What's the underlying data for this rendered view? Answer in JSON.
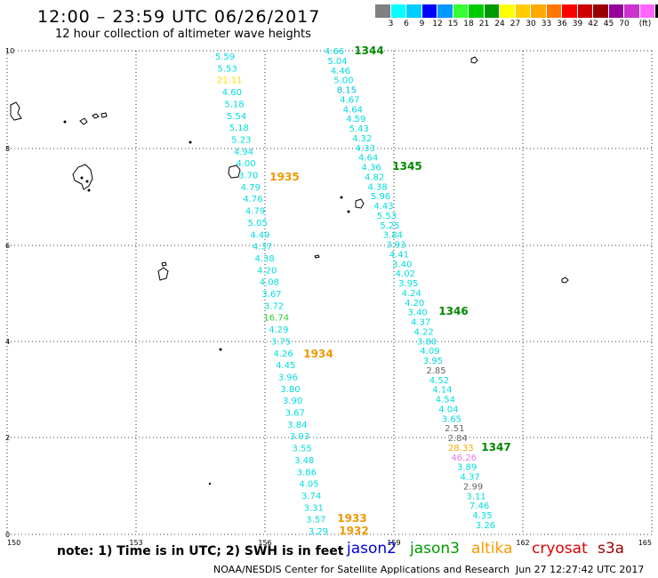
{
  "header": {
    "title": "12:00 – 23:59 UTC 06/26/2017",
    "subtitle": "12 hour collection of altimeter wave heights"
  },
  "legend": {
    "unit": "(ft)",
    "colors": [
      "#808080",
      "#00ffff",
      "#00ccff",
      "#0000ff",
      "#0099ff",
      "#33ff33",
      "#00cc00",
      "#009900",
      "#ffff00",
      "#ffcc00",
      "#ffaa00",
      "#ff7700",
      "#ff0000",
      "#cc0000",
      "#990000",
      "#990099",
      "#cc33cc",
      "#ff66ff",
      "#000000"
    ],
    "labels": [
      "3",
      "6",
      "9",
      "12",
      "15",
      "18",
      "21",
      "24",
      "27",
      "30",
      "33",
      "36",
      "39",
      "42",
      "45",
      "70"
    ]
  },
  "axes": {
    "x_ticks": [
      "150",
      "153",
      "156",
      "159",
      "162",
      "165"
    ],
    "y_ticks": [
      "10",
      "8",
      "6",
      "4",
      "2",
      "0"
    ]
  },
  "passes": [
    {
      "time": "1344",
      "color": "#008800"
    },
    {
      "time": "1345",
      "color": "#008800"
    },
    {
      "time": "1346",
      "color": "#008800"
    },
    {
      "time": "1347",
      "color": "#008800"
    },
    {
      "time": "1935",
      "color": "#ee9900"
    },
    {
      "time": "1934",
      "color": "#ee9900"
    },
    {
      "time": "1933",
      "color": "#ee9900"
    },
    {
      "time": "1932",
      "color": "#ee9900"
    }
  ],
  "track_west": [
    {
      "v": "5.59",
      "c": "#00dddd"
    },
    {
      "v": "5.53",
      "c": "#00dddd"
    },
    {
      "v": "21.11",
      "c": "#ffdd00"
    },
    {
      "v": "4.60",
      "c": "#00dddd"
    },
    {
      "v": "5.18",
      "c": "#00dddd"
    },
    {
      "v": "5.54",
      "c": "#00dddd"
    },
    {
      "v": "5.18",
      "c": "#00dddd"
    },
    {
      "v": "5.23",
      "c": "#00dddd"
    },
    {
      "v": "4.94",
      "c": "#00dddd"
    },
    {
      "v": "4.00",
      "c": "#00dddd"
    },
    {
      "v": "3.70",
      "c": "#00dddd"
    },
    {
      "v": "4.79",
      "c": "#00dddd"
    },
    {
      "v": "4.76",
      "c": "#00dddd"
    },
    {
      "v": "4.79",
      "c": "#00dddd"
    },
    {
      "v": "5.05",
      "c": "#00dddd"
    },
    {
      "v": "4.49",
      "c": "#00dddd"
    },
    {
      "v": "4.37",
      "c": "#00dddd"
    },
    {
      "v": "4.38",
      "c": "#00dddd"
    },
    {
      "v": "4.20",
      "c": "#00dddd"
    },
    {
      "v": "4.08",
      "c": "#00dddd"
    },
    {
      "v": "3.67",
      "c": "#00dddd"
    },
    {
      "v": "3.72",
      "c": "#00dddd"
    },
    {
      "v": "16.74",
      "c": "#33cc33"
    },
    {
      "v": "4.29",
      "c": "#00dddd"
    },
    {
      "v": "3.75",
      "c": "#00dddd"
    },
    {
      "v": "4.26",
      "c": "#00dddd"
    },
    {
      "v": "4.45",
      "c": "#00dddd"
    },
    {
      "v": "3.96",
      "c": "#00dddd"
    },
    {
      "v": "3.80",
      "c": "#00dddd"
    },
    {
      "v": "3.90",
      "c": "#00dddd"
    },
    {
      "v": "3.67",
      "c": "#00dddd"
    },
    {
      "v": "3.84",
      "c": "#00dddd"
    },
    {
      "v": "3.93",
      "c": "#00dddd"
    },
    {
      "v": "3.55",
      "c": "#00dddd"
    },
    {
      "v": "3.48",
      "c": "#00dddd"
    },
    {
      "v": "3.86",
      "c": "#00dddd"
    },
    {
      "v": "4.05",
      "c": "#00dddd"
    },
    {
      "v": "3.74",
      "c": "#00dddd"
    },
    {
      "v": "3.31",
      "c": "#00dddd"
    },
    {
      "v": "3.57",
      "c": "#00dddd"
    },
    {
      "v": "3.29",
      "c": "#00dddd"
    }
  ],
  "track_east": [
    {
      "v": "4.66",
      "c": "#00dddd"
    },
    {
      "v": "5.04",
      "c": "#00dddd"
    },
    {
      "v": "4.46",
      "c": "#00dddd"
    },
    {
      "v": "5.00",
      "c": "#00dddd"
    },
    {
      "v": "8.15",
      "c": "#00bbdd"
    },
    {
      "v": "4.67",
      "c": "#00dddd"
    },
    {
      "v": "4.64",
      "c": "#00dddd"
    },
    {
      "v": "4.59",
      "c": "#00dddd"
    },
    {
      "v": "5.43",
      "c": "#00dddd"
    },
    {
      "v": "4.32",
      "c": "#00dddd"
    },
    {
      "v": "4.33",
      "c": "#00dddd"
    },
    {
      "v": "4.64",
      "c": "#00dddd"
    },
    {
      "v": "4.36",
      "c": "#00dddd"
    },
    {
      "v": "4.82",
      "c": "#00dddd"
    },
    {
      "v": "4.38",
      "c": "#00dddd"
    },
    {
      "v": "5.96",
      "c": "#00dddd"
    },
    {
      "v": "4.43",
      "c": "#00dddd"
    },
    {
      "v": "5.53",
      "c": "#00dddd"
    },
    {
      "v": "5.25",
      "c": "#00dddd"
    },
    {
      "v": "3.84",
      "c": "#00dddd"
    },
    {
      "v": "3.93",
      "c": "#00dddd"
    },
    {
      "v": "4.41",
      "c": "#00dddd"
    },
    {
      "v": "3.40",
      "c": "#00dddd"
    },
    {
      "v": "4.02",
      "c": "#00dddd"
    },
    {
      "v": "3.95",
      "c": "#00dddd"
    },
    {
      "v": "4.24",
      "c": "#00dddd"
    },
    {
      "v": "4.20",
      "c": "#00dddd"
    },
    {
      "v": "3.40",
      "c": "#00dddd"
    },
    {
      "v": "4.37",
      "c": "#00dddd"
    },
    {
      "v": "4.22",
      "c": "#00dddd"
    },
    {
      "v": "3.80",
      "c": "#00dddd"
    },
    {
      "v": "4.09",
      "c": "#00dddd"
    },
    {
      "v": "3.95",
      "c": "#00dddd"
    },
    {
      "v": "2.85",
      "c": "#666666"
    },
    {
      "v": "4.52",
      "c": "#00dddd"
    },
    {
      "v": "4.14",
      "c": "#00dddd"
    },
    {
      "v": "4.54",
      "c": "#00dddd"
    },
    {
      "v": "4.04",
      "c": "#00dddd"
    },
    {
      "v": "3.65",
      "c": "#00dddd"
    },
    {
      "v": "2.51",
      "c": "#666666"
    },
    {
      "v": "2.84",
      "c": "#666666"
    },
    {
      "v": "28.33",
      "c": "#ffaa00"
    },
    {
      "v": "46.26",
      "c": "#ee77ee"
    },
    {
      "v": "3.89",
      "c": "#00dddd"
    },
    {
      "v": "4.37",
      "c": "#00dddd"
    },
    {
      "v": "2.99",
      "c": "#666666"
    },
    {
      "v": "3.11",
      "c": "#00dddd"
    },
    {
      "v": "7.46",
      "c": "#00dddd"
    },
    {
      "v": "4.35",
      "c": "#00dddd"
    },
    {
      "v": "3.26",
      "c": "#00dddd"
    }
  ],
  "footer": {
    "note": "note: 1) Time is in UTC; 2) SWH is in feet",
    "satellites": [
      {
        "name": "jason2",
        "color": "#0000dd"
      },
      {
        "name": "jason3",
        "color": "#009900"
      },
      {
        "name": "altika",
        "color": "#ff9900"
      },
      {
        "name": "cryosat",
        "color": "#dd0000"
      },
      {
        "name": "s3a",
        "color": "#990000"
      }
    ],
    "credit": "NOAA/NESDIS Center for Satellite Applications and Research",
    "timestamp": "Jun 27 12:27:42 UTC 2017"
  }
}
